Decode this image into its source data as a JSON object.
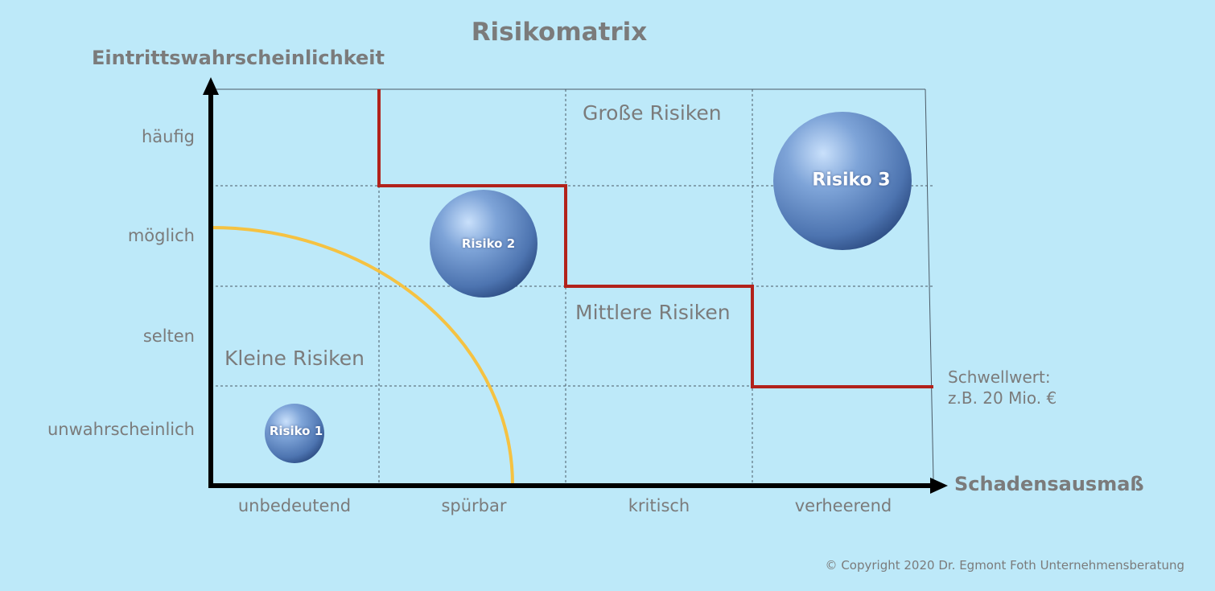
{
  "title": "Risikomatrix",
  "y_axis_label": "Eintrittswahrscheinlichkeit",
  "x_axis_label": "Schadensausmaß",
  "y_levels": [
    "häufig",
    "möglich",
    "selten",
    "unwahrscheinlich"
  ],
  "x_levels": [
    "unbedeutend",
    "spürbar",
    "kritisch",
    "verheerend"
  ],
  "zones": {
    "large": "Große Risiken",
    "medium": "Mittlere Risiken",
    "small": "Kleine Risiken"
  },
  "threshold": {
    "line1": "Schwellwert:",
    "line2": "z.B. 20 Mio. €"
  },
  "risks": [
    {
      "label": "Risiko 1",
      "impact": "unbedeutend",
      "likelihood": "unwahrscheinlich"
    },
    {
      "label": "Risiko 2",
      "impact": "spürbar",
      "likelihood": "möglich"
    },
    {
      "label": "Risiko 3",
      "impact": "verheerend",
      "likelihood": "häufig"
    }
  ],
  "copyright": "© Copyright 2020 Dr. Egmont Foth Unternehmensberatung",
  "colors": {
    "background": "#bde9f9",
    "text": "#7b7b7b",
    "threshold_line": "#b2221b",
    "small_risk_curve": "#f5c242",
    "risk_ball": "#5b86c6",
    "axis": "#000000"
  }
}
